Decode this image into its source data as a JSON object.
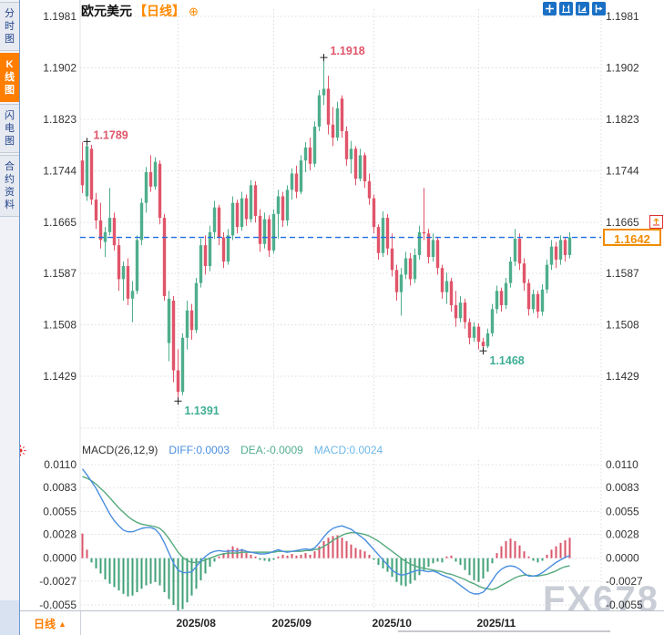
{
  "watermark": "FX678",
  "sidebar": {
    "tabs": [
      {
        "label": "分时图",
        "active": false
      },
      {
        "label": "K线图",
        "active": true
      },
      {
        "label": "闪电图",
        "active": false
      },
      {
        "label": "合约资料",
        "active": false
      }
    ]
  },
  "header": {
    "symbol": "欧元美元",
    "period_tag": "【日线】",
    "add_icon_glyph": "⊕"
  },
  "toolbar": {
    "icons": [
      "crosshair-tool-icon",
      "x-axis-scale-icon",
      "y-axis-scale-icon",
      "pan-right-icon"
    ]
  },
  "price_tag": {
    "value": "1.1642"
  },
  "alert_icon_glyph": "▲",
  "macd_header": {
    "params": "MACD(26,12,9)",
    "diff_label": "DIFF:0.0003",
    "dea_label": "DEA:-0.0009",
    "macd_label": "MACD:0.0024"
  },
  "bottom_bar": {
    "period_label": "日线",
    "period_arrow": "▲"
  },
  "chart_data": [
    {
      "type": "candlestick",
      "title": "欧元美元 日线",
      "y_ticks": [
        "1.1981",
        "1.1902",
        "1.1823",
        "1.1744",
        "1.1665",
        "1.1587",
        "1.1508",
        "1.1429"
      ],
      "x_ticks": [
        {
          "label": "2025/08",
          "index": 21
        },
        {
          "label": "2025/09",
          "index": 42
        },
        {
          "label": "2025/10",
          "index": 64
        },
        {
          "label": "2025/11",
          "index": 87
        }
      ],
      "current_price": 1.1642,
      "annotations": [
        {
          "index": 1,
          "at": "high",
          "label": "1.1789",
          "color": "#e0556a"
        },
        {
          "index": 53,
          "at": "high",
          "label": "1.1918",
          "color": "#e0556a"
        },
        {
          "index": 21,
          "at": "low",
          "label": "1.1391",
          "color": "#3fae94"
        },
        {
          "index": 88,
          "at": "low",
          "label": "1.1468",
          "color": "#3fae94"
        }
      ],
      "colors": {
        "up": "#4fae8c",
        "down": "#e0556a",
        "current_line": "#1d6ee0"
      },
      "candles": [
        [
          1.176,
          1.1788,
          1.171,
          1.1722
        ],
        [
          1.1705,
          1.1789,
          1.1698,
          1.1782
        ],
        [
          1.1778,
          1.1784,
          1.1692,
          1.17
        ],
        [
          1.17,
          1.171,
          1.1655,
          1.1668
        ],
        [
          1.1668,
          1.1695,
          1.1625,
          1.1638
        ],
        [
          1.1635,
          1.1658,
          1.1612,
          1.165
        ],
        [
          1.165,
          1.1718,
          1.1645,
          1.1672
        ],
        [
          1.1672,
          1.168,
          1.1622,
          1.163
        ],
        [
          1.163,
          1.164,
          1.156,
          1.1578
        ],
        [
          1.1578,
          1.1605,
          1.1545,
          1.1598
        ],
        [
          1.1598,
          1.161,
          1.1538,
          1.1548
        ],
        [
          1.1548,
          1.1575,
          1.1512,
          1.156
        ],
        [
          1.156,
          1.1645,
          1.1555,
          1.1638
        ],
        [
          1.1638,
          1.1702,
          1.163,
          1.1695
        ],
        [
          1.1695,
          1.175,
          1.168,
          1.1742
        ],
        [
          1.1742,
          1.1768,
          1.1712,
          1.172
        ],
        [
          1.172,
          1.1765,
          1.1715,
          1.1758
        ],
        [
          1.1755,
          1.176,
          1.1662,
          1.1672
        ],
        [
          1.1672,
          1.1678,
          1.1545,
          1.1552
        ],
        [
          1.148,
          1.156,
          1.1452,
          1.1548
        ],
        [
          1.1545,
          1.1552,
          1.142,
          1.1438
        ],
        [
          1.1438,
          1.147,
          1.1391,
          1.1405
        ],
        [
          1.1405,
          1.1495,
          1.14,
          1.1488
        ],
        [
          1.1488,
          1.1545,
          1.147,
          1.153
        ],
        [
          1.153,
          1.154,
          1.1485,
          1.15
        ],
        [
          1.15,
          1.158,
          1.1495,
          1.1572
        ],
        [
          1.1572,
          1.164,
          1.1565,
          1.163
        ],
        [
          1.163,
          1.1645,
          1.1585,
          1.1598
        ],
        [
          1.1598,
          1.166,
          1.159,
          1.165
        ],
        [
          1.165,
          1.1698,
          1.164,
          1.1688
        ],
        [
          1.1688,
          1.1692,
          1.163,
          1.1642
        ],
        [
          1.1642,
          1.165,
          1.1595,
          1.1605
        ],
        [
          1.1605,
          1.1655,
          1.16,
          1.1645
        ],
        [
          1.1645,
          1.1705,
          1.1638,
          1.1695
        ],
        [
          1.1695,
          1.17,
          1.1648,
          1.1658
        ],
        [
          1.1658,
          1.1712,
          1.1652,
          1.1702
        ],
        [
          1.1702,
          1.1708,
          1.166,
          1.167
        ],
        [
          1.167,
          1.173,
          1.1665,
          1.1722
        ],
        [
          1.1722,
          1.1728,
          1.1665,
          1.1675
        ],
        [
          1.1675,
          1.1685,
          1.162,
          1.1632
        ],
        [
          1.1632,
          1.168,
          1.1625,
          1.167
        ],
        [
          1.167,
          1.1676,
          1.1612,
          1.1622
        ],
        [
          1.1622,
          1.1685,
          1.1618,
          1.1678
        ],
        [
          1.1678,
          1.1715,
          1.164,
          1.1705
        ],
        [
          1.1705,
          1.1712,
          1.1658,
          1.1668
        ],
        [
          1.1668,
          1.1722,
          1.166,
          1.1715
        ],
        [
          1.1715,
          1.1748,
          1.17,
          1.174
        ],
        [
          1.174,
          1.1752,
          1.1702,
          1.1712
        ],
        [
          1.1712,
          1.1768,
          1.1708,
          1.176
        ],
        [
          1.176,
          1.1788,
          1.1742,
          1.178
        ],
        [
          1.178,
          1.1795,
          1.1745,
          1.1755
        ],
        [
          1.1755,
          1.182,
          1.175,
          1.1812
        ],
        [
          1.1812,
          1.1868,
          1.1805,
          1.186
        ],
        [
          1.186,
          1.1918,
          1.1845,
          1.187
        ],
        [
          1.187,
          1.189,
          1.18,
          1.1815
        ],
        [
          1.1815,
          1.1842,
          1.1782,
          1.1795
        ],
        [
          1.1795,
          1.185,
          1.179,
          1.184
        ],
        [
          1.1855,
          1.186,
          1.1795,
          1.1805
        ],
        [
          1.1805,
          1.1812,
          1.1752,
          1.1762
        ],
        [
          1.1762,
          1.179,
          1.174,
          1.1778
        ],
        [
          1.1778,
          1.1782,
          1.1722,
          1.1732
        ],
        [
          1.1732,
          1.1778,
          1.1728,
          1.1768
        ],
        [
          1.1768,
          1.1772,
          1.1718,
          1.1728
        ],
        [
          1.1728,
          1.174,
          1.1692,
          1.1702
        ],
        [
          1.1702,
          1.1708,
          1.1648,
          1.1658
        ],
        [
          1.1658,
          1.1662,
          1.1608,
          1.1618
        ],
        [
          1.1618,
          1.1682,
          1.1612,
          1.1672
        ],
        [
          1.1672,
          1.1678,
          1.1615,
          1.1625
        ],
        [
          1.1625,
          1.1648,
          1.1582,
          1.1592
        ],
        [
          1.1592,
          1.16,
          1.1545,
          1.1558
        ],
        [
          1.1558,
          1.1595,
          1.1522,
          1.1585
        ],
        [
          1.1585,
          1.162,
          1.1578,
          1.161
        ],
        [
          1.161,
          1.1618,
          1.1568,
          1.1578
        ],
        [
          1.1578,
          1.1625,
          1.1572,
          1.1615
        ],
        [
          1.1615,
          1.166,
          1.1608,
          1.165
        ],
        [
          1.165,
          1.1718,
          1.1638,
          1.1648
        ],
        [
          1.1648,
          1.1655,
          1.1602,
          1.1612
        ],
        [
          1.1612,
          1.1648,
          1.1605,
          1.1638
        ],
        [
          1.1638,
          1.1642,
          1.1585,
          1.1595
        ],
        [
          1.1595,
          1.16,
          1.1548,
          1.1558
        ],
        [
          1.1558,
          1.1588,
          1.154,
          1.1575
        ],
        [
          1.1575,
          1.158,
          1.1528,
          1.1538
        ],
        [
          1.1538,
          1.156,
          1.1505,
          1.1518
        ],
        [
          1.1518,
          1.1552,
          1.1512,
          1.1542
        ],
        [
          1.1542,
          1.1548,
          1.1502,
          1.1512
        ],
        [
          1.1512,
          1.1518,
          1.1478,
          1.1488
        ],
        [
          1.1488,
          1.1512,
          1.1482,
          1.1505
        ],
        [
          1.1505,
          1.151,
          1.147,
          1.1482
        ],
        [
          1.1482,
          1.1488,
          1.1468,
          1.1475
        ],
        [
          1.1475,
          1.1502,
          1.1472,
          1.1495
        ],
        [
          1.1495,
          1.154,
          1.149,
          1.1532
        ],
        [
          1.1532,
          1.1568,
          1.1525,
          1.156
        ],
        [
          1.156,
          1.1565,
          1.1528,
          1.1538
        ],
        [
          1.1538,
          1.158,
          1.1532,
          1.1572
        ],
        [
          1.1572,
          1.1612,
          1.1565,
          1.1605
        ],
        [
          1.1605,
          1.1655,
          1.1598,
          1.164
        ],
        [
          1.164,
          1.1648,
          1.1592,
          1.1602
        ],
        [
          1.1602,
          1.161,
          1.156,
          1.1572
        ],
        [
          1.1572,
          1.1578,
          1.1522,
          1.1532
        ],
        [
          1.1532,
          1.1562,
          1.1526,
          1.1555
        ],
        [
          1.1555,
          1.156,
          1.1518,
          1.1528
        ],
        [
          1.1528,
          1.157,
          1.1522,
          1.1562
        ],
        [
          1.1562,
          1.1608,
          1.1556,
          1.16
        ],
        [
          1.16,
          1.1638,
          1.1592,
          1.1628
        ],
        [
          1.1628,
          1.1635,
          1.1595,
          1.1608
        ],
        [
          1.1608,
          1.1645,
          1.16,
          1.1638
        ],
        [
          1.1638,
          1.1642,
          1.1605,
          1.1615
        ],
        [
          1.1615,
          1.165,
          1.161,
          1.1642
        ]
      ]
    },
    {
      "type": "macd",
      "params": "MACD(26,12,9)",
      "y_ticks": [
        "0.0110",
        "0.0083",
        "0.0055",
        "0.0028",
        "0.0000",
        "-0.0027",
        "-0.0055"
      ],
      "colors": {
        "diff": "#4a8ee0",
        "dea": "#55aa7d",
        "hist_pos": "#d9566a",
        "hist_neg": "#3fa077"
      },
      "diff": [
        0.0105,
        0.0098,
        0.009,
        0.0082,
        0.0072,
        0.0062,
        0.0052,
        0.0044,
        0.0038,
        0.0033,
        0.0031,
        0.0031,
        0.0033,
        0.0035,
        0.0036,
        0.0036,
        0.0034,
        0.0028,
        0.0018,
        0.0006,
        -0.0006,
        -0.0014,
        -0.0017,
        -0.0017,
        -0.0016,
        -0.001,
        -0.0003,
        0.0002,
        0.0006,
        0.0008,
        0.0009,
        0.0008,
        0.0008,
        0.0009,
        0.0008,
        0.001,
        0.0008,
        0.0007,
        0.0006,
        0.0005,
        0.0005,
        0.0006,
        0.0008,
        0.001,
        0.0008,
        0.0007,
        0.0008,
        0.0009,
        0.001,
        0.0011,
        0.001,
        0.0012,
        0.0018,
        0.0025,
        0.0031,
        0.0035,
        0.0037,
        0.0038,
        0.0036,
        0.0034,
        0.003,
        0.0026,
        0.0022,
        0.0016,
        0.001,
        0.0004,
        -0.0002,
        -0.0008,
        -0.0014,
        -0.0018,
        -0.002,
        -0.0019,
        -0.0017,
        -0.0015,
        -0.0014,
        -0.0015,
        -0.0016,
        -0.0015,
        -0.0017,
        -0.002,
        -0.0022,
        -0.0024,
        -0.0028,
        -0.0032,
        -0.0036,
        -0.004,
        -0.0042,
        -0.0042,
        -0.004,
        -0.0034,
        -0.0026,
        -0.0018,
        -0.0013,
        -0.001,
        -0.0009,
        -0.001,
        -0.0013,
        -0.0018,
        -0.0021,
        -0.0021,
        -0.002,
        -0.0017,
        -0.0013,
        -0.0009,
        -0.0005,
        -0.0002,
        0.0001,
        0.0003
      ],
      "dea": [
        0.0096,
        0.0094,
        0.0091,
        0.0087,
        0.0082,
        0.0077,
        0.0071,
        0.0065,
        0.0059,
        0.0054,
        0.0049,
        0.0045,
        0.0042,
        0.004,
        0.0039,
        0.0038,
        0.0037,
        0.0035,
        0.003,
        0.0023,
        0.0015,
        0.0007,
        0.0001,
        -0.0003,
        -0.0005,
        -0.0005,
        -0.0004,
        -0.0002,
        0.0,
        0.0002,
        0.0004,
        0.0005,
        0.0006,
        0.0006,
        0.0006,
        0.0007,
        0.0007,
        0.0007,
        0.0007,
        0.0007,
        0.0007,
        0.0007,
        0.0007,
        0.0008,
        0.0008,
        0.0008,
        0.0008,
        0.0008,
        0.0008,
        0.0009,
        0.0009,
        0.001,
        0.0011,
        0.0014,
        0.0017,
        0.0021,
        0.0024,
        0.0027,
        0.0029,
        0.003,
        0.003,
        0.0029,
        0.0028,
        0.0026,
        0.0023,
        0.002,
        0.0016,
        0.0012,
        0.0008,
        0.0004,
        0.0,
        -0.0004,
        -0.0007,
        -0.0009,
        -0.0011,
        -0.0012,
        -0.0013,
        -0.0014,
        -0.0015,
        -0.0016,
        -0.0018,
        -0.0019,
        -0.0021,
        -0.0023,
        -0.0025,
        -0.0028,
        -0.003,
        -0.0033,
        -0.0035,
        -0.0036,
        -0.0037,
        -0.0035,
        -0.0032,
        -0.0029,
        -0.0026,
        -0.0023,
        -0.0021,
        -0.002,
        -0.002,
        -0.0021,
        -0.0021,
        -0.002,
        -0.0019,
        -0.0017,
        -0.0015,
        -0.0012,
        -0.001,
        -0.0009
      ],
      "histogram": [
        0.0029,
        0.001,
        -0.0005,
        -0.0012,
        -0.0018,
        -0.0025,
        -0.003,
        -0.0034,
        -0.0038,
        -0.0042,
        -0.0045,
        -0.0044,
        -0.004,
        -0.0036,
        -0.0032,
        -0.003,
        -0.0028,
        -0.0032,
        -0.004,
        -0.0048,
        -0.0055,
        -0.0062,
        -0.006,
        -0.0052,
        -0.0044,
        -0.0036,
        -0.0026,
        -0.0018,
        -0.001,
        -0.0004,
        0.0002,
        0.0006,
        0.001,
        0.0014,
        0.0012,
        0.001,
        0.0006,
        0.0004,
        0.0002,
        -0.0002,
        -0.0003,
        -0.0004,
        -0.0002,
        0.0002,
        0.0004,
        0.0003,
        0.0005,
        0.0003,
        0.0004,
        0.0006,
        0.0004,
        0.0008,
        0.0014,
        0.002,
        0.0024,
        0.0026,
        0.0027,
        0.0024,
        0.002,
        0.0016,
        0.0012,
        0.001,
        0.0008,
        0.0004,
        -0.0002,
        -0.0008,
        -0.0012,
        -0.0016,
        -0.0022,
        -0.0028,
        -0.0032,
        -0.0033,
        -0.003,
        -0.0026,
        -0.002,
        -0.0014,
        -0.001,
        -0.0006,
        -0.0004,
        -0.0005,
        0.0002,
        0.0003,
        -0.0004,
        -0.0008,
        -0.0014,
        -0.002,
        -0.0026,
        -0.0028,
        -0.0024,
        -0.0016,
        -0.0006,
        0.0006,
        0.0014,
        0.002,
        0.0023,
        0.002,
        0.0015,
        0.0008,
        0.0002,
        -0.0003,
        -0.0005,
        -0.0003,
        0.0004,
        0.001,
        0.0014,
        0.0018,
        0.0021,
        0.0024
      ]
    }
  ]
}
